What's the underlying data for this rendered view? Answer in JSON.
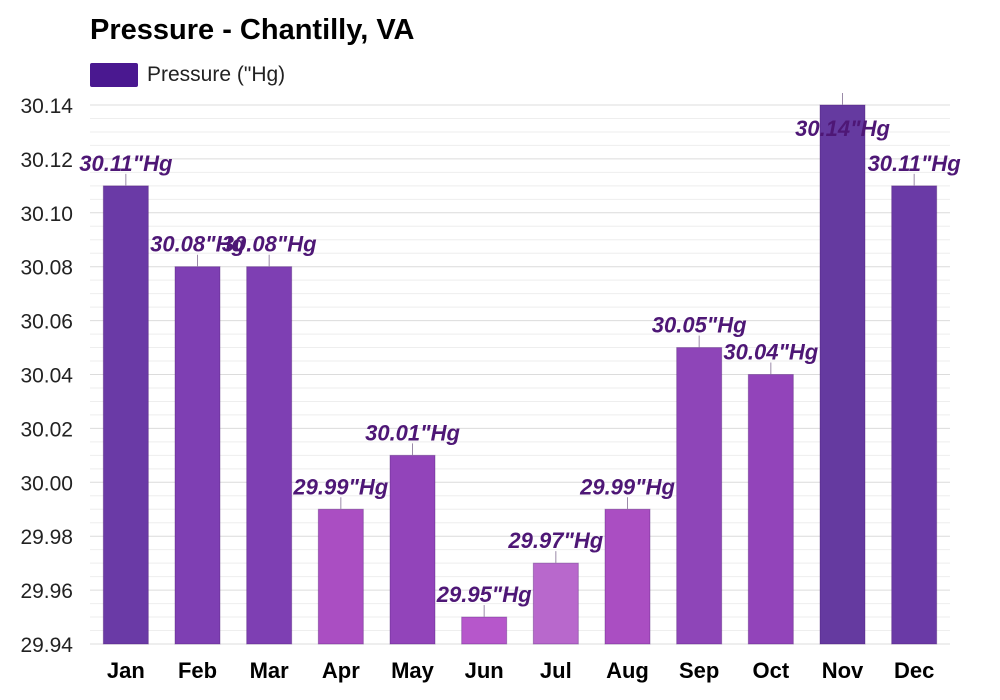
{
  "chart_data": {
    "type": "bar",
    "title": "Pressure - Chantilly, VA",
    "legend": {
      "label": "Pressure (\"Hg)",
      "placement": "top-left",
      "color": "#4a1890"
    },
    "categories": [
      "Jan",
      "Feb",
      "Mar",
      "Apr",
      "May",
      "Jun",
      "Jul",
      "Aug",
      "Sep",
      "Oct",
      "Nov",
      "Dec"
    ],
    "series": [
      {
        "name": "Pressure (\"Hg)",
        "values": [
          30.11,
          30.08,
          30.08,
          29.99,
          30.01,
          29.95,
          29.97,
          29.99,
          30.05,
          30.04,
          30.14,
          30.11
        ],
        "labels": [
          "30.11\"Hg",
          "30.08\"Hg",
          "30.08\"Hg",
          "29.99\"Hg",
          "30.01\"Hg",
          "29.95\"Hg",
          "29.97\"Hg",
          "29.99\"Hg",
          "30.05\"Hg",
          "30.04\"Hg",
          "30.14\"Hg",
          "30.11\"Hg"
        ],
        "colors": [
          "#6a3aa6",
          "#7e3fb3",
          "#7e3fb3",
          "#aa4ec2",
          "#9244ba",
          "#b657cb",
          "#b868cc",
          "#aa4ec2",
          "#8e45b8",
          "#9244ba",
          "#653aa0",
          "#6a3aa6"
        ]
      }
    ],
    "yticks": [
      "30.14",
      "30.12",
      "30.10",
      "30.08",
      "30.06",
      "30.04",
      "30.02",
      "30.00",
      "29.98",
      "29.96",
      "29.94"
    ],
    "ylim": [
      29.94,
      30.14
    ],
    "grid": true,
    "label_color": "#4e1776"
  }
}
